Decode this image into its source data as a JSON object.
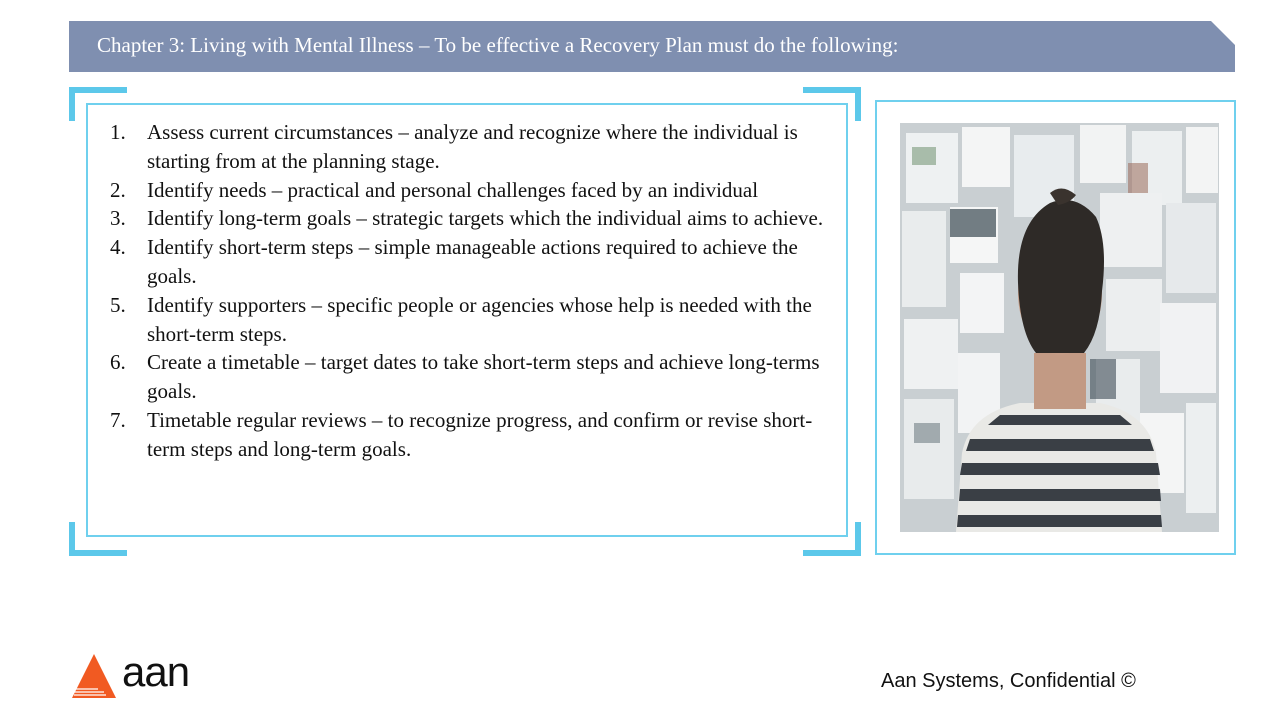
{
  "header": {
    "title": "Chapter 3: Living with Mental Illness – To be effective a Recovery Plan must do the following:"
  },
  "steps": [
    {
      "num": "1.",
      "text": "Assess current circumstances – analyze and recognize  where the individual is starting from at the planning stage."
    },
    {
      "num": "2.",
      "text": "Identify needs – practical and personal challenges faced by an individual"
    },
    {
      "num": "3.",
      "text": "Identify long-term goals – strategic targets which the individual aims to achieve."
    },
    {
      "num": "4.",
      "text": "Identify short-term steps – simple manageable actions required to achieve the goals."
    },
    {
      "num": "5.",
      "text": "Identify supporters – specific people or agencies whose help is needed with the short-term steps."
    },
    {
      "num": "6.",
      "text": "Create a timetable – target dates to take short-term steps and achieve long-terms goals."
    },
    {
      "num": "7.",
      "text": "Timetable regular reviews – to recognize progress, and confirm or revise short-term steps and long-term goals."
    }
  ],
  "footer": {
    "logo_text": "aan",
    "confidential": "Aan Systems, Confidential ©"
  },
  "colors": {
    "header_bg": "#7f8fb0",
    "accent_cyan": "#5cc8ea",
    "logo_orange": "#f15a22"
  }
}
